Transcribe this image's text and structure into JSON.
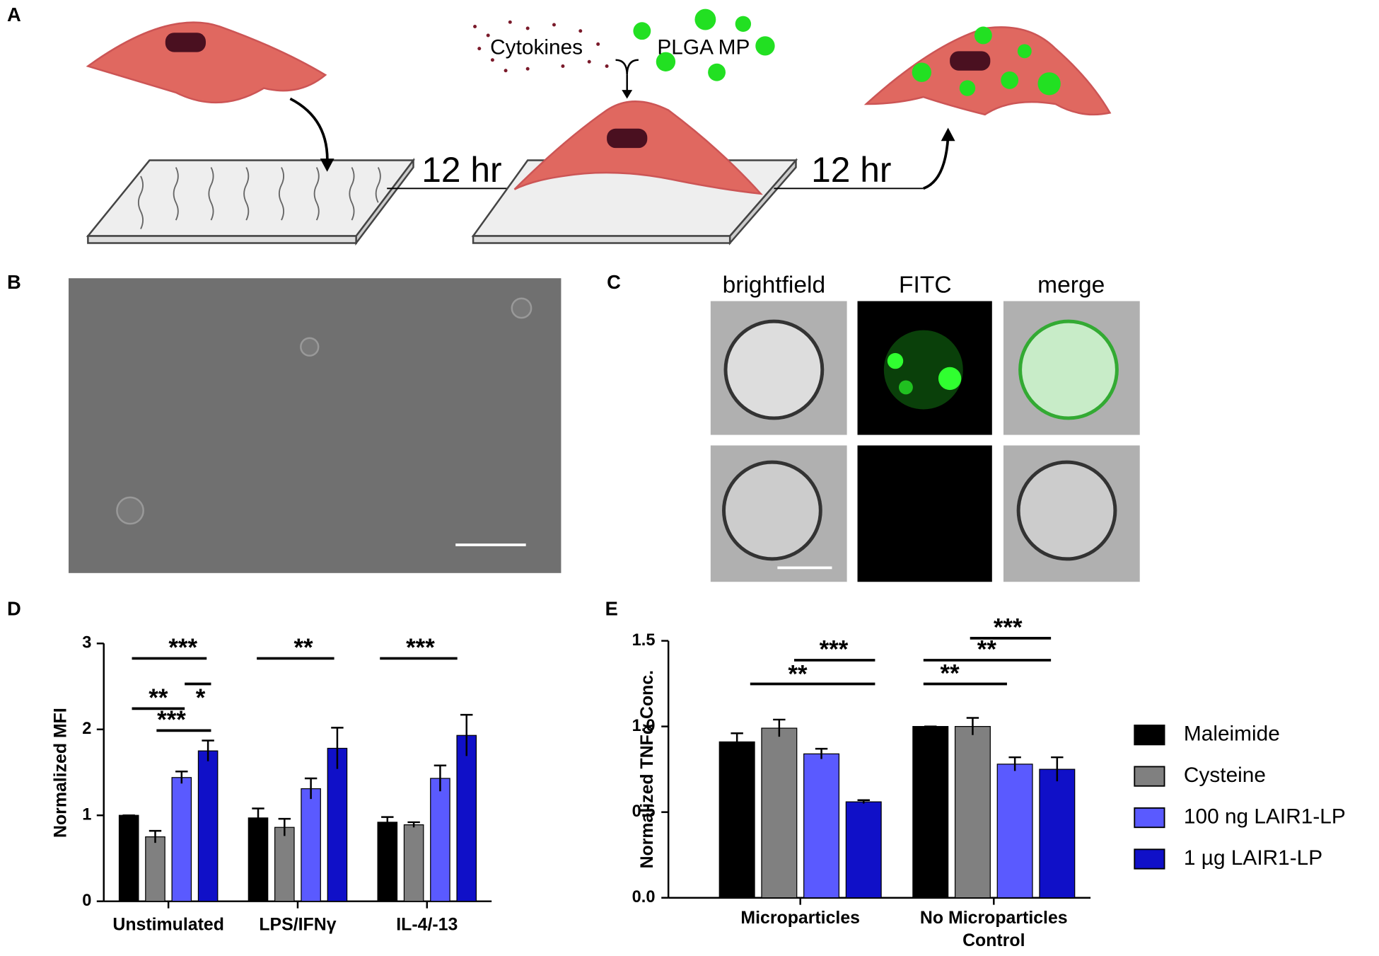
{
  "panel_labels": [
    "A",
    "B",
    "C",
    "D",
    "E"
  ],
  "diagram": {
    "cytokines": "Cytokines",
    "plga": "PLGA MP",
    "step1": "12 hr",
    "step2": "12 hr"
  },
  "microscopy": {
    "columns": [
      "brightfield",
      "FITC",
      "merge"
    ]
  },
  "chart_data": [
    {
      "type": "bar",
      "ylabel": "Normalized MFI",
      "categories": [
        "Unstimulated",
        "LPS/IFNγ",
        "IL-4/-13"
      ],
      "series": [
        {
          "color": "#000000",
          "values": [
            1.0,
            0.97,
            0.92
          ],
          "errors": [
            0,
            0.11,
            0.06
          ]
        },
        {
          "color": "#808080",
          "values": [
            0.75,
            0.86,
            0.89
          ],
          "errors": [
            0.07,
            0.1,
            0.03
          ]
        },
        {
          "color": "#5a5aff",
          "values": [
            1.44,
            1.31,
            1.43
          ],
          "errors": [
            0.07,
            0.12,
            0.15
          ]
        },
        {
          "color": "#1010c8",
          "values": [
            1.75,
            1.78,
            1.93
          ],
          "errors": [
            0.12,
            0.24,
            0.24
          ]
        }
      ],
      "ylim": [
        0,
        3
      ],
      "yticks": [
        0,
        1,
        2,
        3
      ],
      "annotations": [
        "***",
        "*",
        "**",
        "***",
        "**",
        "***"
      ]
    },
    {
      "type": "bar",
      "ylabel": "Normalized TNFα Conc.",
      "categories": [
        "Microparticles",
        "No Microparticles Control"
      ],
      "series": [
        {
          "name": "Maleimide",
          "color": "#000000",
          "values": [
            0.91,
            1.0
          ],
          "errors": [
            0.05,
            0
          ]
        },
        {
          "name": "Cysteine",
          "color": "#808080",
          "values": [
            0.99,
            1.0
          ],
          "errors": [
            0.05,
            0.05
          ]
        },
        {
          "name": "100 ng LAIR1-LP",
          "color": "#5a5aff",
          "values": [
            0.84,
            0.78
          ],
          "errors": [
            0.03,
            0.04
          ]
        },
        {
          "name": "1 µg LAIR1-LP",
          "color": "#1010c8",
          "values": [
            0.56,
            0.75
          ],
          "errors": [
            0.01,
            0.07
          ]
        }
      ],
      "ylim": [
        0,
        1.5
      ],
      "yticks": [
        {
          "value": 0,
          "label": "0.0"
        },
        {
          "value": 0.5,
          "label": "0.5"
        },
        {
          "value": 1,
          "label": "1.0"
        },
        {
          "value": 1.5,
          "label": "1.5"
        }
      ],
      "annotations": [
        "***",
        "**",
        "***",
        "**",
        "**"
      ]
    }
  ]
}
